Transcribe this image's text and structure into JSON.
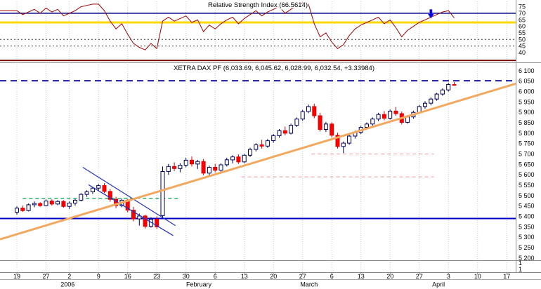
{
  "window": {
    "background": "#ffffff"
  },
  "layout_colors": {
    "grid": "#c9c9c9",
    "divider": "#8a8a8a",
    "text": "#000000"
  },
  "x_axis": {
    "tick_labels": [
      {
        "i": 0,
        "label": "19"
      },
      {
        "i": 5,
        "label": "27"
      },
      {
        "i": 9,
        "label": "2"
      },
      {
        "i": 14,
        "label": "9"
      },
      {
        "i": 19,
        "label": "16"
      },
      {
        "i": 24,
        "label": "23"
      },
      {
        "i": 29,
        "label": "30"
      },
      {
        "i": 34,
        "label": "6"
      },
      {
        "i": 39,
        "label": "13"
      },
      {
        "i": 44,
        "label": "20"
      },
      {
        "i": 49,
        "label": "27"
      },
      {
        "i": 54,
        "label": "6"
      },
      {
        "i": 59,
        "label": "13"
      },
      {
        "i": 64,
        "label": "20"
      },
      {
        "i": 69,
        "label": "27"
      },
      {
        "i": 74,
        "label": "3"
      },
      {
        "i": 79,
        "label": "10"
      },
      {
        "i": 84,
        "label": "17"
      }
    ],
    "month_labels": [
      {
        "i": 8.7,
        "label": "2006"
      },
      {
        "i": 31.2,
        "label": "February"
      },
      {
        "i": 50.1,
        "label": "March"
      },
      {
        "i": 72.3,
        "label": "April"
      }
    ]
  },
  "right_axis": {
    "rsi_ticks": [
      {
        "v": 75,
        "label": "75"
      },
      {
        "v": 70,
        "label": "70"
      },
      {
        "v": 65,
        "label": "65"
      },
      {
        "v": 60,
        "label": "60"
      },
      {
        "v": 55,
        "label": "55"
      },
      {
        "v": 50,
        "label": "50"
      },
      {
        "v": 45,
        "label": "45"
      },
      {
        "v": 40,
        "label": "40"
      }
    ],
    "price_ticks": [
      {
        "v": 6100,
        "label": "6 100"
      },
      {
        "v": 6050,
        "label": "6 050"
      },
      {
        "v": 6000,
        "label": "6 000"
      },
      {
        "v": 5950,
        "label": "5 950"
      },
      {
        "v": 5900,
        "label": "5 900"
      },
      {
        "v": 5850,
        "label": "5 850"
      },
      {
        "v": 5800,
        "label": "5 800"
      },
      {
        "v": 5750,
        "label": "5 750"
      },
      {
        "v": 5700,
        "label": "5 700"
      },
      {
        "v": 5650,
        "label": "5 650"
      },
      {
        "v": 5600,
        "label": "5 600"
      },
      {
        "v": 5550,
        "label": "5 550"
      },
      {
        "v": 5500,
        "label": "5 500"
      },
      {
        "v": 5450,
        "label": "5 450"
      },
      {
        "v": 5400,
        "label": "5 400"
      },
      {
        "v": 5350,
        "label": "5 350"
      },
      {
        "v": 5300,
        "label": "5 300"
      },
      {
        "v": 5250,
        "label": "5 250"
      },
      {
        "v": 5200,
        "label": "5 200"
      }
    ],
    "mini_panel_labels": [
      "1",
      "1"
    ]
  },
  "chart_data": [
    {
      "type": "line",
      "name": "RSI",
      "title": "Relative Strength Index (66.5614)",
      "last_value": 66.5614,
      "ylim": [
        33,
        78
      ],
      "yticks": [
        75,
        70,
        65,
        60,
        55,
        50,
        45,
        40
      ],
      "line_color": "#a00000",
      "grid": "vertical-dotted",
      "legend_position": "none",
      "values": [
        72,
        69,
        71,
        73,
        70,
        74,
        71,
        73,
        68,
        70,
        72,
        75,
        76,
        77,
        77,
        72,
        64,
        58,
        62,
        54,
        47,
        44,
        42,
        47,
        43,
        64,
        67,
        64,
        66,
        68,
        63,
        65,
        56,
        61,
        58,
        62,
        65,
        67,
        62,
        66,
        69,
        72,
        68,
        71,
        73,
        75,
        70,
        73,
        76,
        78,
        77,
        62,
        52,
        55,
        48,
        43,
        46,
        53,
        58,
        61,
        63,
        65,
        67,
        62,
        65,
        59,
        52,
        57,
        60,
        63,
        65,
        67,
        69,
        71,
        72,
        66.56
      ],
      "hlines": [
        {
          "value": 70,
          "color": "#000080",
          "style": "solid",
          "width": 1.5
        },
        {
          "value": 63,
          "color": "#ffd800",
          "style": "solid",
          "width": 3
        },
        {
          "value": 50,
          "color": "#333333",
          "style": "dotted",
          "width": 1
        },
        {
          "value": 45,
          "color": "#333333",
          "style": "dotted",
          "width": 1
        },
        {
          "value": 34,
          "color": "#7a0000",
          "style": "solid",
          "width": 2
        }
      ],
      "annotations": [
        {
          "type": "arrow-down",
          "index": 71,
          "tip_value": 66,
          "color": "#0000e0"
        }
      ]
    },
    {
      "type": "candlestick",
      "name": "XETRA DAX PF",
      "title": "XETRA DAX PF (6,033.69, 6,045.62, 6,028.99, 6,032.54, +3.33984)",
      "open": 6033.69,
      "high": 6045.62,
      "low": 6028.99,
      "close": 6032.54,
      "change": 3.33984,
      "ylim": [
        5186,
        6130
      ],
      "ytick_step": 50,
      "up_color": "#ffffff",
      "down_color": "#ff0000",
      "up_border": "#00005a",
      "down_border": "#dd0000",
      "ohlc": [
        [
          5420,
          5448,
          5408,
          5440
        ],
        [
          5440,
          5452,
          5422,
          5428
        ],
        [
          5428,
          5462,
          5424,
          5456
        ],
        [
          5456,
          5472,
          5444,
          5462
        ],
        [
          5462,
          5468,
          5446,
          5452
        ],
        [
          5452,
          5482,
          5448,
          5474
        ],
        [
          5474,
          5482,
          5452,
          5460
        ],
        [
          5460,
          5478,
          5454,
          5472
        ],
        [
          5472,
          5478,
          5442,
          5448
        ],
        [
          5448,
          5472,
          5436,
          5464
        ],
        [
          5464,
          5484,
          5452,
          5478
        ],
        [
          5478,
          5512,
          5472,
          5506
        ],
        [
          5506,
          5526,
          5494,
          5518
        ],
        [
          5518,
          5542,
          5508,
          5536
        ],
        [
          5536,
          5556,
          5522,
          5548
        ],
        [
          5548,
          5560,
          5512,
          5520
        ],
        [
          5520,
          5532,
          5470,
          5482
        ],
        [
          5482,
          5494,
          5440,
          5452
        ],
        [
          5452,
          5486,
          5444,
          5478
        ],
        [
          5478,
          5484,
          5420,
          5430
        ],
        [
          5430,
          5446,
          5376,
          5388
        ],
        [
          5388,
          5414,
          5356,
          5402
        ],
        [
          5402,
          5408,
          5342,
          5352
        ],
        [
          5352,
          5396,
          5346,
          5386
        ],
        [
          5386,
          5400,
          5340,
          5350
        ],
        [
          5404,
          5640,
          5390,
          5616
        ],
        [
          5616,
          5652,
          5600,
          5640
        ],
        [
          5640,
          5660,
          5618,
          5630
        ],
        [
          5630,
          5656,
          5612,
          5646
        ],
        [
          5646,
          5682,
          5636,
          5670
        ],
        [
          5670,
          5688,
          5640,
          5652
        ],
        [
          5652,
          5672,
          5628,
          5664
        ],
        [
          5664,
          5676,
          5598,
          5608
        ],
        [
          5608,
          5644,
          5596,
          5636
        ],
        [
          5636,
          5652,
          5612,
          5622
        ],
        [
          5622,
          5656,
          5610,
          5648
        ],
        [
          5648,
          5682,
          5640,
          5672
        ],
        [
          5672,
          5694,
          5655,
          5686
        ],
        [
          5686,
          5698,
          5652,
          5662
        ],
        [
          5662,
          5700,
          5656,
          5694
        ],
        [
          5694,
          5730,
          5686,
          5722
        ],
        [
          5722,
          5752,
          5712,
          5744
        ],
        [
          5744,
          5768,
          5726,
          5738
        ],
        [
          5738,
          5772,
          5730,
          5764
        ],
        [
          5764,
          5796,
          5754,
          5788
        ],
        [
          5788,
          5820,
          5778,
          5812
        ],
        [
          5812,
          5832,
          5790,
          5800
        ],
        [
          5800,
          5846,
          5794,
          5838
        ],
        [
          5838,
          5876,
          5830,
          5868
        ],
        [
          5868,
          5912,
          5860,
          5904
        ],
        [
          5904,
          5938,
          5896,
          5928
        ],
        [
          5928,
          5942,
          5872,
          5884
        ],
        [
          5884,
          5898,
          5808,
          5818
        ],
        [
          5818,
          5854,
          5806,
          5844
        ],
        [
          5844,
          5852,
          5780,
          5790
        ],
        [
          5790,
          5802,
          5726,
          5736
        ],
        [
          5736,
          5760,
          5704,
          5752
        ],
        [
          5752,
          5794,
          5744,
          5786
        ],
        [
          5786,
          5812,
          5774,
          5804
        ],
        [
          5804,
          5836,
          5796,
          5828
        ],
        [
          5828,
          5852,
          5818,
          5844
        ],
        [
          5844,
          5876,
          5836,
          5868
        ],
        [
          5868,
          5898,
          5858,
          5890
        ],
        [
          5890,
          5906,
          5862,
          5872
        ],
        [
          5872,
          5914,
          5866,
          5906
        ],
        [
          5906,
          5926,
          5884,
          5894
        ],
        [
          5894,
          5904,
          5842,
          5852
        ],
        [
          5852,
          5886,
          5846,
          5878
        ],
        [
          5878,
          5908,
          5870,
          5900
        ],
        [
          5900,
          5936,
          5892,
          5928
        ],
        [
          5928,
          5954,
          5918,
          5944
        ],
        [
          5944,
          5972,
          5934,
          5964
        ],
        [
          5964,
          5994,
          5956,
          5988
        ],
        [
          5988,
          6016,
          5980,
          6008
        ],
        [
          6008,
          6042,
          6000,
          6034
        ],
        [
          6033.69,
          6045.62,
          6028.99,
          6032.54
        ]
      ],
      "overlays": {
        "trendline": {
          "price_start": 5290,
          "price_end": 6038,
          "color": "#f2a95f",
          "width": 3
        },
        "horizontal_dashed": {
          "price": 6052,
          "color": "#1a1aa6",
          "width": 2,
          "dash": "9,6"
        },
        "horizontal_support": {
          "price": 5390,
          "color": "#0000c8",
          "width": 2
        },
        "green_dashed": {
          "price": 5487,
          "i1": 1,
          "i2": 28,
          "color": "#00a550"
        },
        "pink_dashed": [
          {
            "price": 5590,
            "i1": 38.5,
            "i2": 71.5,
            "color": "#f0a0a8"
          },
          {
            "price": 5700,
            "i1": 50.5,
            "i2": 71.5,
            "color": "#f0a0a8"
          }
        ],
        "channel": {
          "color": "#2233bb",
          "width": 1.2,
          "lines": [
            {
              "i1": 11.3,
              "p1": 5636,
              "i2": 27.2,
              "p2": 5356
            },
            {
              "i1": 12.3,
              "p1": 5552,
              "i2": 26.8,
              "p2": 5308
            }
          ]
        }
      }
    }
  ]
}
